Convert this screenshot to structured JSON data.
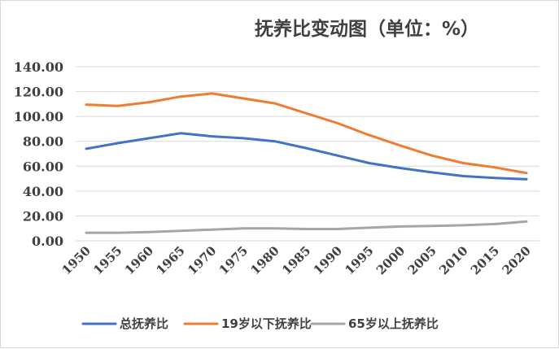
{
  "chart_data": {
    "type": "line",
    "title": "抚养比变动图（单位：%）",
    "xlabel": "",
    "ylabel": "",
    "x": [
      "1950",
      "1955",
      "1960",
      "1965",
      "1970",
      "1975",
      "1980",
      "1985",
      "1990",
      "1995",
      "2000",
      "2005",
      "2010",
      "2015",
      "2020"
    ],
    "ylim": [
      0,
      140
    ],
    "y_ticks": [
      "0.00",
      "20.00",
      "40.00",
      "60.00",
      "80.00",
      "100.00",
      "120.00",
      "140.00"
    ],
    "y_tick_values": [
      0,
      20,
      40,
      60,
      80,
      100,
      120,
      140
    ],
    "grid": true,
    "legend_position": "bottom",
    "series": [
      {
        "name": "总抚养比",
        "color": "#4472c4",
        "values": [
          74.0,
          78.5,
          82.5,
          86.5,
          84.0,
          82.5,
          80.0,
          74.5,
          68.5,
          62.5,
          58.5,
          55.0,
          52.0,
          50.5,
          49.5
        ]
      },
      {
        "name": "19岁以下抚养比",
        "color": "#ed7d31",
        "values": [
          109.5,
          108.5,
          111.5,
          116.0,
          118.5,
          114.5,
          110.5,
          102.5,
          94.5,
          85.0,
          76.5,
          68.5,
          62.5,
          59.0,
          54.5
        ]
      },
      {
        "name": "65岁以上抚养比",
        "color": "#a5a5a5",
        "values": [
          6.5,
          6.5,
          7.0,
          8.0,
          9.0,
          10.0,
          10.0,
          9.5,
          9.5,
          10.5,
          11.5,
          12.0,
          12.5,
          13.5,
          15.5
        ]
      }
    ]
  }
}
